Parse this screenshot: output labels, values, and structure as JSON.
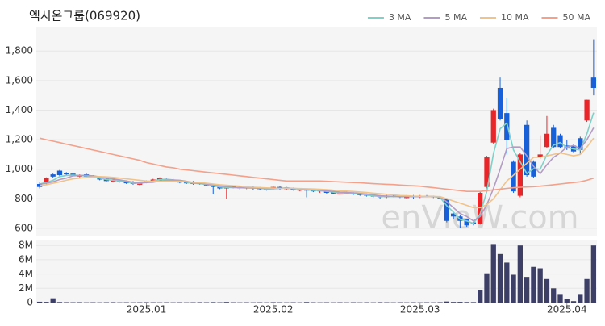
{
  "chart_data": [
    {
      "type": "candlestick",
      "title": "엑시온그룹(069920)",
      "watermark": "enVieW.com",
      "categories": [
        null,
        null,
        null,
        null,
        null,
        null,
        null,
        null,
        null,
        null,
        null,
        null,
        null,
        null,
        null,
        null,
        "2025.01",
        null,
        null,
        null,
        null,
        null,
        null,
        null,
        null,
        null,
        null,
        null,
        null,
        null,
        null,
        null,
        null,
        null,
        null,
        "2025.02",
        null,
        null,
        null,
        null,
        null,
        null,
        null,
        null,
        null,
        null,
        null,
        null,
        null,
        null,
        null,
        null,
        null,
        null,
        null,
        null,
        null,
        "2025.03",
        null,
        null,
        null,
        null,
        null,
        null,
        null,
        null,
        null,
        null,
        null,
        null,
        null,
        null,
        null,
        null,
        null,
        null,
        null,
        null,
        null,
        "2025.04",
        null,
        null,
        null,
        null
      ],
      "open": [
        900,
        905,
        965,
        990,
        975,
        970,
        950,
        965,
        955,
        945,
        935,
        915,
        925,
        920,
        915,
        895,
        910,
        920,
        925,
        935,
        930,
        920,
        910,
        915,
        905,
        900,
        895,
        885,
        870,
        885,
        880,
        870,
        880,
        875,
        870,
        865,
        880,
        865,
        870,
        855,
        865,
        860,
        850,
        855,
        845,
        830,
        835,
        840,
        835,
        830,
        825,
        820,
        810,
        820,
        815,
        805,
        820,
        810,
        820,
        815,
        810,
        800,
        700,
        680,
        660,
        640,
        630,
        880,
        1180,
        1550,
        1380,
        1050,
        820,
        1300,
        1050,
        1080,
        1150,
        1280,
        1230,
        1160,
        1160,
        1210,
        1330,
        1620
      ],
      "high": [
        910,
        945,
        970,
        995,
        980,
        975,
        965,
        970,
        960,
        950,
        940,
        935,
        930,
        925,
        920,
        915,
        925,
        935,
        945,
        940,
        935,
        925,
        915,
        920,
        910,
        905,
        900,
        890,
        885,
        890,
        885,
        885,
        885,
        880,
        875,
        885,
        885,
        880,
        875,
        870,
        870,
        865,
        865,
        860,
        850,
        845,
        850,
        845,
        840,
        835,
        830,
        825,
        825,
        825,
        820,
        825,
        825,
        825,
        825,
        820,
        815,
        805,
        710,
        690,
        665,
        645,
        850,
        1090,
        1410,
        1620,
        1480,
        1060,
        1110,
        1330,
        1060,
        1230,
        1360,
        1300,
        1240,
        1200,
        1170,
        1220,
        1470,
        1880
      ],
      "low": [
        870,
        895,
        940,
        950,
        955,
        950,
        945,
        945,
        940,
        925,
        915,
        910,
        910,
        900,
        895,
        890,
        905,
        915,
        920,
        920,
        915,
        905,
        900,
        895,
        895,
        885,
        830,
        865,
        800,
        870,
        860,
        865,
        860,
        860,
        855,
        860,
        860,
        860,
        855,
        850,
        810,
        845,
        840,
        835,
        830,
        825,
        830,
        825,
        820,
        815,
        810,
        800,
        805,
        810,
        805,
        800,
        800,
        805,
        810,
        805,
        795,
        640,
        660,
        600,
        610,
        620,
        625,
        870,
        1170,
        1330,
        1100,
        840,
        810,
        950,
        940,
        1070,
        1140,
        1140,
        1140,
        1130,
        1110,
        1100,
        1320,
        1500
      ],
      "close": [
        880,
        940,
        950,
        960,
        965,
        955,
        960,
        950,
        945,
        930,
        920,
        930,
        915,
        905,
        900,
        910,
        920,
        930,
        940,
        925,
        920,
        910,
        905,
        900,
        900,
        890,
        880,
        870,
        880,
        875,
        870,
        880,
        870,
        865,
        860,
        880,
        870,
        875,
        860,
        865,
        855,
        850,
        860,
        840,
        835,
        840,
        845,
        830,
        825,
        820,
        815,
        810,
        820,
        815,
        810,
        820,
        810,
        820,
        815,
        810,
        800,
        650,
        680,
        650,
        620,
        630,
        840,
        1080,
        1400,
        1340,
        1200,
        850,
        1100,
        960,
        950,
        1100,
        1240,
        1150,
        1150,
        1140,
        1120,
        1130,
        1470,
        1550
      ],
      "up_color": "#e8262a",
      "down_color": "#1760d8",
      "series": [
        {
          "name": "3 MA",
          "color": "#7fd1c8",
          "values": [
            900,
            910,
            925,
            950,
            958,
            960,
            958,
            955,
            950,
            940,
            930,
            925,
            920,
            915,
            905,
            905,
            910,
            920,
            930,
            932,
            928,
            918,
            912,
            905,
            902,
            897,
            890,
            880,
            877,
            875,
            875,
            875,
            873,
            872,
            865,
            868,
            870,
            875,
            868,
            866,
            860,
            857,
            855,
            850,
            845,
            838,
            840,
            838,
            833,
            825,
            820,
            815,
            815,
            815,
            815,
            815,
            815,
            815,
            815,
            815,
            808,
            753,
            710,
            660,
            650,
            633,
            697,
            850,
            1107,
            1273,
            1313,
            1130,
            1050,
            970,
            1003,
            1000,
            1097,
            1163,
            1180,
            1147,
            1137,
            1130,
            1240,
            1383
          ]
        },
        {
          "name": "5 MA",
          "color": "#b39cc4",
          "values": [
            900,
            905,
            915,
            930,
            940,
            955,
            958,
            958,
            955,
            948,
            940,
            935,
            928,
            920,
            912,
            910,
            910,
            912,
            920,
            925,
            927,
            925,
            918,
            910,
            905,
            900,
            895,
            888,
            882,
            878,
            875,
            873,
            873,
            872,
            869,
            870,
            870,
            872,
            870,
            868,
            865,
            862,
            858,
            854,
            850,
            845,
            843,
            840,
            836,
            832,
            826,
            820,
            818,
            816,
            815,
            815,
            815,
            815,
            815,
            815,
            812,
            780,
            740,
            700,
            680,
            650,
            680,
            760,
            870,
            1000,
            1140,
            1150,
            1150,
            1090,
            1020,
            970,
            1030,
            1080,
            1110,
            1150,
            1160,
            1140,
            1200,
            1280
          ]
        },
        {
          "name": "10 MA",
          "color": "#f0c38a",
          "values": [
            890,
            895,
            905,
            915,
            925,
            935,
            940,
            945,
            948,
            950,
            948,
            945,
            940,
            935,
            930,
            925,
            920,
            918,
            918,
            918,
            918,
            918,
            915,
            912,
            910,
            905,
            900,
            895,
            892,
            888,
            885,
            880,
            878,
            876,
            874,
            872,
            871,
            870,
            870,
            869,
            868,
            866,
            864,
            862,
            858,
            855,
            852,
            849,
            846,
            842,
            838,
            834,
            830,
            826,
            822,
            820,
            818,
            817,
            816,
            815,
            814,
            800,
            785,
            770,
            755,
            740,
            740,
            760,
            800,
            860,
            920,
            960,
            1000,
            1040,
            1080,
            1080,
            1090,
            1100,
            1110,
            1100,
            1090,
            1100,
            1150,
            1210
          ]
        },
        {
          "name": "50 MA",
          "color": "#f4a08a",
          "values": [
            1210,
            1200,
            1190,
            1180,
            1170,
            1160,
            1150,
            1140,
            1130,
            1120,
            1110,
            1100,
            1090,
            1080,
            1070,
            1060,
            1045,
            1035,
            1025,
            1015,
            1010,
            1000,
            995,
            990,
            985,
            980,
            975,
            970,
            965,
            960,
            955,
            950,
            945,
            940,
            935,
            930,
            925,
            920,
            920,
            920,
            920,
            920,
            920,
            918,
            916,
            914,
            912,
            910,
            908,
            905,
            902,
            900,
            898,
            896,
            893,
            890,
            888,
            885,
            880,
            875,
            870,
            865,
            860,
            855,
            850,
            850,
            850,
            855,
            860,
            865,
            870,
            875,
            878,
            880,
            882,
            885,
            890,
            895,
            900,
            905,
            910,
            915,
            925,
            940
          ]
        }
      ],
      "ylim": [
        545,
        1965
      ],
      "yticks": [
        600,
        800,
        {
          "value": 1000,
          "label": "1,000"
        },
        {
          "value": 1200,
          "label": "1,200"
        },
        {
          "value": 1400,
          "label": "1,400"
        },
        {
          "value": 1600,
          "label": "1,600"
        },
        {
          "value": 1800,
          "label": "1,800"
        }
      ],
      "grid": true,
      "legend": "top-right"
    },
    {
      "type": "bar",
      "color": "#3d3f66",
      "values": [
        120000,
        100000,
        600000,
        80000,
        60000,
        50000,
        60000,
        40000,
        50000,
        40000,
        50000,
        60000,
        40000,
        50000,
        40000,
        50000,
        60000,
        50000,
        40000,
        50000,
        40000,
        50000,
        40000,
        50000,
        60000,
        50000,
        70000,
        50000,
        90000,
        50000,
        40000,
        50000,
        40000,
        50000,
        40000,
        60000,
        50000,
        40000,
        50000,
        40000,
        80000,
        50000,
        40000,
        50000,
        40000,
        50000,
        40000,
        50000,
        40000,
        50000,
        40000,
        60000,
        50000,
        40000,
        50000,
        40000,
        50000,
        40000,
        50000,
        40000,
        60000,
        150000,
        90000,
        100000,
        80000,
        70000,
        1800000,
        4100000,
        8200000,
        6800000,
        5600000,
        3900000,
        8000000,
        3600000,
        5000000,
        4800000,
        3300000,
        2000000,
        1200000,
        500000,
        200000,
        1200000,
        3300000,
        8000000
      ],
      "ylim": [
        0,
        8700000
      ],
      "yticks": [
        0,
        {
          "value": 2000000,
          "label": "2M"
        },
        {
          "value": 4000000,
          "label": "4M"
        },
        {
          "value": 6000000,
          "label": "6M"
        },
        {
          "value": 8000000,
          "label": "8M"
        }
      ],
      "grid": true
    }
  ]
}
